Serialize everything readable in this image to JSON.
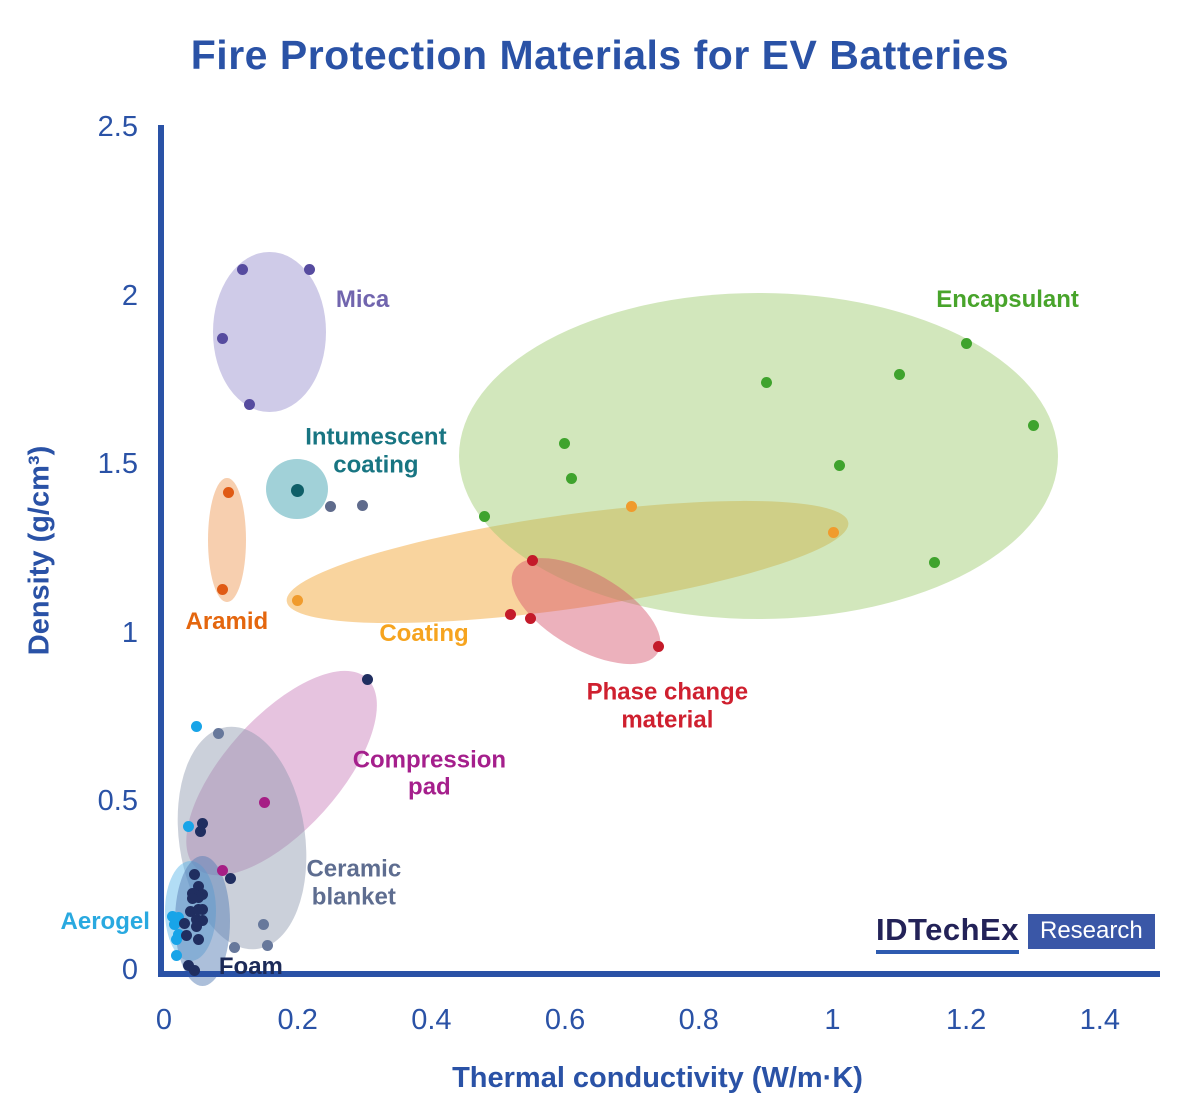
{
  "title": "Fire Protection Materials for EV Batteries",
  "colors": {
    "axis_blue": "#2a52a6",
    "background": "#ffffff",
    "logo_text": "#232258",
    "logo_underline": "#2e5bb0",
    "logo_badge_bg": "#3a57a7",
    "logo_badge_text": "#ffffff"
  },
  "branding": {
    "logo_text": "IDTechEx",
    "badge_text": "Research"
  },
  "chart_data": {
    "type": "scatter",
    "title": "Fire Protection Materials for EV Batteries",
    "xlabel": "Thermal conductivity (W/m·K)",
    "ylabel": "Density (g/cm³)",
    "xlim": [
      0,
      1.49
    ],
    "ylim": [
      0,
      2.51
    ],
    "grid": false,
    "x_ticks": [
      0,
      0.2,
      0.4,
      0.6,
      0.8,
      1,
      1.2,
      1.4
    ],
    "x_tick_labels": [
      "0",
      "0.2",
      "0.4",
      "0.6",
      "0.8",
      "1",
      "1.2",
      "1.4"
    ],
    "y_ticks": [
      0,
      0.5,
      1,
      1.5,
      2,
      2.5
    ],
    "y_tick_labels": [
      "0",
      "0.5",
      "1",
      "1.5",
      "2",
      "2.5"
    ],
    "groups": [
      {
        "name": "mica",
        "label": "Mica",
        "label_color": "#7165ae",
        "label_pos": {
          "x": 0.297,
          "y": 1.99
        },
        "dot_color": "#564b9f",
        "dot_size": 11,
        "ellipse": {
          "cx": 0.158,
          "cy": 1.896,
          "rx": 0.084,
          "ry": 0.237,
          "rot": 0,
          "fill": "#8d84c8",
          "opacity": 0.42
        },
        "points": [
          [
            0.118,
            2.08
          ],
          [
            0.218,
            2.08
          ],
          [
            0.087,
            1.878
          ],
          [
            0.128,
            1.68
          ]
        ]
      },
      {
        "name": "intumescent-coating",
        "label": "Intumescent\ncoating",
        "label_color": "#187582",
        "label_pos": {
          "x": 0.317,
          "y": 1.543
        },
        "dot_color": "#0f5f68",
        "dot_size": 13,
        "ellipse": {
          "cx": 0.199,
          "cy": 1.43,
          "rx": 0.046,
          "ry": 0.089,
          "rot": 0,
          "fill": "#4ba6b4",
          "opacity": 0.52
        },
        "points": [
          [
            0.199,
            1.427
          ]
        ]
      },
      {
        "name": "aramid",
        "label": "Aramid",
        "label_color": "#e4660e",
        "label_pos": {
          "x": 0.094,
          "y": 1.035
        },
        "dot_color": "#e05a14",
        "dot_size": 11,
        "ellipse": {
          "cx": 0.094,
          "cy": 1.279,
          "rx": 0.028,
          "ry": 0.184,
          "rot": 0,
          "fill": "#f0a060",
          "opacity": 0.5
        },
        "points": [
          [
            0.097,
            1.421
          ],
          [
            0.088,
            1.131
          ]
        ]
      },
      {
        "name": "coating",
        "label": "Coating",
        "label_color": "#f6a41f",
        "label_pos": {
          "x": 0.389,
          "y": 1.0
        },
        "dot_color": "#f09b2d",
        "dot_size": 11,
        "ellipse": {
          "cx": 0.603,
          "cy": 1.214,
          "rx": 0.424,
          "ry": 0.139,
          "rot": -8,
          "fill": "#f3aa3e",
          "opacity": 0.5
        },
        "points": [
          [
            0.199,
            1.098
          ],
          [
            0.7,
            1.377
          ],
          [
            1.001,
            1.3
          ]
        ]
      },
      {
        "name": "encapsulant",
        "label": "Encapsulant",
        "label_color": "#48a42b",
        "label_pos": {
          "x": 1.262,
          "y": 1.99
        },
        "dot_color": "#3fa32d",
        "dot_size": 11,
        "ellipse": {
          "cx": 0.89,
          "cy": 1.528,
          "rx": 0.448,
          "ry": 0.484,
          "rot": 0,
          "fill": "#9cc96a",
          "opacity": 0.45
        },
        "points": [
          [
            1.2,
            1.861
          ],
          [
            1.101,
            1.769
          ],
          [
            0.901,
            1.745
          ],
          [
            1.301,
            1.617
          ],
          [
            0.599,
            1.564
          ],
          [
            1.01,
            1.499
          ],
          [
            0.61,
            1.46
          ],
          [
            0.479,
            1.347
          ],
          [
            1.152,
            1.211
          ]
        ]
      },
      {
        "name": "phase-change-material",
        "label": "Phase change\nmaterial",
        "label_color": "#cf202f",
        "label_pos": {
          "x": 0.753,
          "y": 0.785
        },
        "dot_color": "#c41a2a",
        "dot_size": 11,
        "ellipse": {
          "cx": 0.631,
          "cy": 1.068,
          "rx": 0.124,
          "ry": 0.113,
          "rot": 30,
          "fill": "#d4536a",
          "opacity": 0.45
        },
        "points": [
          [
            0.551,
            1.217
          ],
          [
            0.519,
            1.059
          ],
          [
            0.549,
            1.047
          ],
          [
            0.74,
            0.964
          ]
        ]
      },
      {
        "name": "compression-pad",
        "label": "Compression\npad",
        "label_color": "#a51f8c",
        "label_pos": {
          "x": 0.397,
          "y": 0.585
        },
        "dot_color": "#a61e85",
        "dot_size": 11,
        "ellipse": {
          "cx": 0.176,
          "cy": 0.588,
          "rx": 0.191,
          "ry": 0.169,
          "rot": -48,
          "fill": "#c06ab0",
          "opacity": 0.4
        },
        "points": [
          [
            0.151,
            0.499
          ],
          [
            0.088,
            0.297
          ]
        ]
      },
      {
        "name": "ceramic-blanket",
        "label": "Ceramic\nblanket",
        "label_color": "#5e6d90",
        "label_pos": {
          "x": 0.284,
          "y": 0.26
        },
        "dot_color": "#67789b",
        "dot_size": 11,
        "ellipse": {
          "cx": 0.116,
          "cy": 0.395,
          "rx": 0.094,
          "ry": 0.332,
          "rot": -8,
          "fill": "#8b97ad",
          "opacity": 0.45
        },
        "points": [
          [
            0.081,
            0.706
          ],
          [
            0.149,
            0.137
          ],
          [
            0.106,
            0.071
          ],
          [
            0.155,
            0.077
          ]
        ]
      },
      {
        "name": "aerogel",
        "label": "Aerogel",
        "label_color": "#29a9e0",
        "label_pos": {
          "x": -0.088,
          "y": 0.145
        },
        "dot_color": "#18a4e8",
        "dot_size": 11,
        "ellipse": {
          "cx": 0.04,
          "cy": 0.178,
          "rx": 0.038,
          "ry": 0.148,
          "rot": 0,
          "fill": "#55b4e8",
          "opacity": 0.45
        },
        "points": [
          [
            0.049,
            0.724
          ],
          [
            0.037,
            0.43
          ],
          [
            0.013,
            0.163
          ],
          [
            0.021,
            0.16
          ],
          [
            0.022,
            0.148
          ],
          [
            0.015,
            0.137
          ],
          [
            0.021,
            0.107
          ],
          [
            0.018,
            0.092
          ],
          [
            0.019,
            0.045
          ]
        ]
      },
      {
        "name": "foam",
        "label": "Foam",
        "label_color": "#1c2a58",
        "label_pos": {
          "x": 0.13,
          "y": 0.013
        },
        "dot_color": "#202e60",
        "dot_size": 11,
        "ellipse": {
          "cx": 0.057,
          "cy": 0.148,
          "rx": 0.041,
          "ry": 0.193,
          "rot": 0,
          "fill": "#5a7fb5",
          "opacity": 0.5
        },
        "points": [
          [
            0.058,
            0.439
          ],
          [
            0.055,
            0.415
          ],
          [
            0.046,
            0.285
          ],
          [
            0.099,
            0.273
          ],
          [
            0.052,
            0.252
          ],
          [
            0.043,
            0.231
          ],
          [
            0.057,
            0.226
          ],
          [
            0.051,
            0.217
          ],
          [
            0.043,
            0.214
          ],
          [
            0.04,
            0.178
          ],
          [
            0.051,
            0.181
          ],
          [
            0.058,
            0.181
          ],
          [
            0.031,
            0.142
          ],
          [
            0.049,
            0.154
          ],
          [
            0.057,
            0.151
          ],
          [
            0.048,
            0.131
          ],
          [
            0.034,
            0.104
          ],
          [
            0.052,
            0.092
          ],
          [
            0.036,
            0.015
          ],
          [
            0.046,
            0.002
          ]
        ]
      }
    ],
    "extra_points": [
      {
        "name": "unlabeled-slate-dots",
        "color": "#5f6b8c",
        "size": 11,
        "points": [
          [
            0.249,
            1.379
          ],
          [
            0.297,
            1.382
          ]
        ]
      },
      {
        "name": "unlabeled-navy-dot",
        "color": "#202e60",
        "size": 11,
        "points": [
          [
            0.304,
            0.865
          ]
        ]
      }
    ]
  }
}
